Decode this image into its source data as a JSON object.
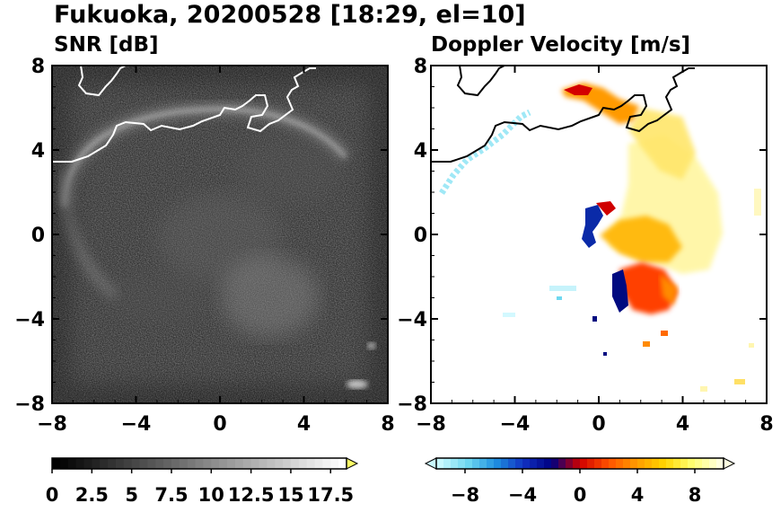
{
  "figure": {
    "title": "Fukuoka, 20200528 [18:29, el=10]"
  },
  "chart_data": [
    {
      "type": "heatmap",
      "title": "SNR [dB]",
      "xlim": [
        -8,
        8
      ],
      "ylim": [
        -8,
        8
      ],
      "xticks": [
        "−8",
        "−4",
        "0",
        "4",
        "8"
      ],
      "yticks": [
        "8",
        "4",
        "0",
        "−4",
        "−8"
      ],
      "grid": false,
      "colorbar": {
        "orientation": "horizontal",
        "range": [
          0,
          18.5
        ],
        "extend": "max",
        "ticks": [
          "0",
          "2.5",
          "5",
          "7.5",
          "10",
          "12.5",
          "15",
          "17.5"
        ],
        "colors": [
          "#000000",
          "#ffffff"
        ]
      }
    },
    {
      "type": "heatmap",
      "title": "Doppler Velocity [m/s]",
      "xlim": [
        -8,
        8
      ],
      "ylim": [
        -8,
        8
      ],
      "xticks": [
        "−8",
        "−4",
        "0",
        "4",
        "8"
      ],
      "yticks": [
        "8",
        "4",
        "0",
        "−4",
        "−8"
      ],
      "grid": false,
      "colorbar": {
        "orientation": "horizontal",
        "range": [
          -10,
          10
        ],
        "extend": "both",
        "ticks": [
          "−8",
          "−4",
          "0",
          "4",
          "8"
        ],
        "colors": [
          "#c8f8ff",
          "#6fd8f0",
          "#1f8fe0",
          "#1030c0",
          "#000080",
          "#d00000",
          "#ff5000",
          "#ff9a00",
          "#ffd400",
          "#ffff70",
          "#ffffe0"
        ]
      }
    }
  ]
}
